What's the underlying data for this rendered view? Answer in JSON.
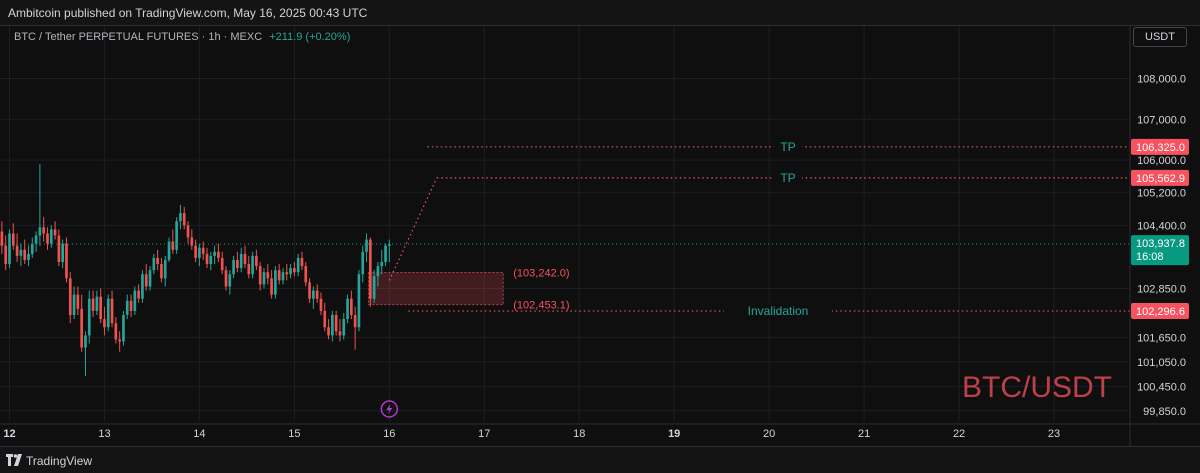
{
  "header": {
    "published": "Ambitcoin published on TradingView.com, May 16, 2025 00:43 UTC"
  },
  "legend": {
    "symbol": "BTC / Tether PERPETUAL FUTURES · 1h · MEXC",
    "change": "+211.9 (+0.20%)"
  },
  "unit_button": "USDT",
  "watermark": "BTC/USDT",
  "footer": {
    "brand": "TradingView",
    "icon": "tradingview-logo-icon"
  },
  "colors": {
    "up": "#26a69a",
    "down": "#ef5350",
    "tp_label": "#26a69a",
    "level_badge": "#f7525f",
    "current_badge": "#089981",
    "zone": "#f7525f",
    "watermark": "#f7525f"
  },
  "chart_data": {
    "type": "candlestick",
    "y_axis": {
      "ylim": [
        99600,
        108700
      ],
      "ticks": [
        {
          "value": 108000,
          "label": "108,000.0"
        },
        {
          "value": 107000,
          "label": "107,000.0"
        },
        {
          "value": 106000,
          "label": "106,000.0"
        },
        {
          "value": 105200,
          "label": "105,200.0"
        },
        {
          "value": 104400,
          "label": "104,400.0"
        },
        {
          "value": 102850,
          "label": "102,850.0"
        },
        {
          "value": 101650,
          "label": "101,650.0"
        },
        {
          "value": 101050,
          "label": "101,050.0"
        },
        {
          "value": 100450,
          "label": "100,450.0"
        },
        {
          "value": 99850,
          "label": "99,850.0"
        }
      ]
    },
    "x_axis": {
      "xlim": [
        11.9,
        23.8
      ],
      "ticks": [
        {
          "value": 12,
          "label": "12",
          "bold": true
        },
        {
          "value": 13,
          "label": "13"
        },
        {
          "value": 14,
          "label": "14"
        },
        {
          "value": 15,
          "label": "15"
        },
        {
          "value": 16,
          "label": "16"
        },
        {
          "value": 17,
          "label": "17"
        },
        {
          "value": 18,
          "label": "18"
        },
        {
          "value": 19,
          "label": "19",
          "bold": true
        },
        {
          "value": 20,
          "label": "20"
        },
        {
          "value": 21,
          "label": "21"
        },
        {
          "value": 22,
          "label": "22"
        },
        {
          "value": 23,
          "label": "23"
        }
      ]
    },
    "current_price": {
      "value": 103937.8,
      "label": "103,937.8",
      "countdown": "16:08"
    },
    "levels": [
      {
        "name": "TP",
        "value": 106325.0,
        "label": "106,325.0",
        "x_start": 16.4
      },
      {
        "name": "TP",
        "value": 105562.9,
        "label": "105,562.9",
        "x_start": 16.5
      },
      {
        "name": "Invalidation",
        "value": 102296.6,
        "label": "102,296.6",
        "x_start": 16.2
      }
    ],
    "zone": {
      "x_from": 15.78,
      "x_to": 17.2,
      "top": 103242.0,
      "bottom": 102453.1,
      "top_label": "(103,242.0)",
      "bottom_label": "(102,453.1)"
    },
    "projection": [
      {
        "x": 16.0,
        "y": 103050
      },
      {
        "x": 16.5,
        "y": 105562.9
      }
    ],
    "candles": [
      {
        "x": 11.92,
        "o": 104250,
        "h": 104500,
        "l": 103700,
        "c": 103900
      },
      {
        "x": 11.96,
        "o": 103900,
        "h": 104150,
        "l": 103300,
        "c": 103450
      },
      {
        "x": 12.0,
        "o": 103450,
        "h": 104300,
        "l": 103350,
        "c": 104200
      },
      {
        "x": 12.04,
        "o": 104200,
        "h": 104450,
        "l": 103800,
        "c": 103900
      },
      {
        "x": 12.08,
        "o": 103900,
        "h": 104200,
        "l": 103500,
        "c": 103650
      },
      {
        "x": 12.12,
        "o": 103650,
        "h": 103950,
        "l": 103400,
        "c": 103800
      },
      {
        "x": 12.16,
        "o": 103800,
        "h": 104050,
        "l": 103450,
        "c": 103550
      },
      {
        "x": 12.2,
        "o": 103550,
        "h": 103900,
        "l": 103400,
        "c": 103700
      },
      {
        "x": 12.24,
        "o": 103700,
        "h": 104100,
        "l": 103600,
        "c": 103950
      },
      {
        "x": 12.28,
        "o": 103950,
        "h": 104250,
        "l": 103750,
        "c": 104150
      },
      {
        "x": 12.32,
        "o": 104150,
        "h": 105900,
        "l": 103900,
        "c": 104350
      },
      {
        "x": 12.36,
        "o": 104350,
        "h": 104600,
        "l": 104000,
        "c": 104200
      },
      {
        "x": 12.4,
        "o": 104200,
        "h": 104350,
        "l": 103800,
        "c": 103950
      },
      {
        "x": 12.44,
        "o": 103950,
        "h": 104400,
        "l": 103850,
        "c": 104300
      },
      {
        "x": 12.48,
        "o": 104300,
        "h": 104500,
        "l": 104050,
        "c": 104150
      },
      {
        "x": 12.52,
        "o": 104150,
        "h": 104300,
        "l": 103400,
        "c": 103500
      },
      {
        "x": 12.56,
        "o": 103500,
        "h": 104050,
        "l": 103350,
        "c": 103950
      },
      {
        "x": 12.6,
        "o": 103950,
        "h": 104100,
        "l": 103000,
        "c": 103100
      },
      {
        "x": 12.64,
        "o": 103100,
        "h": 103250,
        "l": 102000,
        "c": 102200
      },
      {
        "x": 12.68,
        "o": 102200,
        "h": 102900,
        "l": 102100,
        "c": 102700
      },
      {
        "x": 12.72,
        "o": 102700,
        "h": 102900,
        "l": 102200,
        "c": 102350
      },
      {
        "x": 12.76,
        "o": 102350,
        "h": 102700,
        "l": 101300,
        "c": 101400
      },
      {
        "x": 12.8,
        "o": 101400,
        "h": 101800,
        "l": 100700,
        "c": 101700
      },
      {
        "x": 12.84,
        "o": 101700,
        "h": 102800,
        "l": 101500,
        "c": 102600
      },
      {
        "x": 12.88,
        "o": 102600,
        "h": 102800,
        "l": 102150,
        "c": 102300
      },
      {
        "x": 12.92,
        "o": 102300,
        "h": 102800,
        "l": 102200,
        "c": 102650
      },
      {
        "x": 12.96,
        "o": 102650,
        "h": 102850,
        "l": 102000,
        "c": 102100
      },
      {
        "x": 13.0,
        "o": 102100,
        "h": 102400,
        "l": 101700,
        "c": 101900
      },
      {
        "x": 13.04,
        "o": 101900,
        "h": 102700,
        "l": 101800,
        "c": 102600
      },
      {
        "x": 13.08,
        "o": 102600,
        "h": 102800,
        "l": 101900,
        "c": 102000
      },
      {
        "x": 13.12,
        "o": 102000,
        "h": 102150,
        "l": 101500,
        "c": 101600
      },
      {
        "x": 13.16,
        "o": 101600,
        "h": 101800,
        "l": 101300,
        "c": 101550
      },
      {
        "x": 13.2,
        "o": 101550,
        "h": 102300,
        "l": 101450,
        "c": 102200
      },
      {
        "x": 13.24,
        "o": 102200,
        "h": 102700,
        "l": 102100,
        "c": 102550
      },
      {
        "x": 13.28,
        "o": 102550,
        "h": 102700,
        "l": 102150,
        "c": 102300
      },
      {
        "x": 13.32,
        "o": 102300,
        "h": 102900,
        "l": 102200,
        "c": 102800
      },
      {
        "x": 13.36,
        "o": 102800,
        "h": 102950,
        "l": 102500,
        "c": 102600
      },
      {
        "x": 13.4,
        "o": 102600,
        "h": 103300,
        "l": 102500,
        "c": 103200
      },
      {
        "x": 13.44,
        "o": 103200,
        "h": 103450,
        "l": 102800,
        "c": 102900
      },
      {
        "x": 13.48,
        "o": 102900,
        "h": 103400,
        "l": 102800,
        "c": 103300
      },
      {
        "x": 13.52,
        "o": 103300,
        "h": 103700,
        "l": 103200,
        "c": 103600
      },
      {
        "x": 13.56,
        "o": 103600,
        "h": 103800,
        "l": 103300,
        "c": 103450
      },
      {
        "x": 13.6,
        "o": 103450,
        "h": 103600,
        "l": 103000,
        "c": 103100
      },
      {
        "x": 13.64,
        "o": 103100,
        "h": 103650,
        "l": 102900,
        "c": 103550
      },
      {
        "x": 13.68,
        "o": 103550,
        "h": 104100,
        "l": 103500,
        "c": 104000
      },
      {
        "x": 13.72,
        "o": 104000,
        "h": 104300,
        "l": 103700,
        "c": 103800
      },
      {
        "x": 13.76,
        "o": 103800,
        "h": 104600,
        "l": 103700,
        "c": 104500
      },
      {
        "x": 13.8,
        "o": 104500,
        "h": 104900,
        "l": 104300,
        "c": 104700
      },
      {
        "x": 13.84,
        "o": 104700,
        "h": 104850,
        "l": 104300,
        "c": 104400
      },
      {
        "x": 13.88,
        "o": 104400,
        "h": 104500,
        "l": 103950,
        "c": 104100
      },
      {
        "x": 13.92,
        "o": 104100,
        "h": 104300,
        "l": 103800,
        "c": 103900
      },
      {
        "x": 13.96,
        "o": 103900,
        "h": 104050,
        "l": 103500,
        "c": 103600
      },
      {
        "x": 14.0,
        "o": 103600,
        "h": 103950,
        "l": 103400,
        "c": 103850
      },
      {
        "x": 14.04,
        "o": 103850,
        "h": 104000,
        "l": 103550,
        "c": 103700
      },
      {
        "x": 14.08,
        "o": 103700,
        "h": 103850,
        "l": 103350,
        "c": 103450
      },
      {
        "x": 14.12,
        "o": 103450,
        "h": 103750,
        "l": 103300,
        "c": 103650
      },
      {
        "x": 14.16,
        "o": 103650,
        "h": 103900,
        "l": 103450,
        "c": 103750
      },
      {
        "x": 14.2,
        "o": 103750,
        "h": 103950,
        "l": 103500,
        "c": 103600
      },
      {
        "x": 14.24,
        "o": 103600,
        "h": 103750,
        "l": 103200,
        "c": 103300
      },
      {
        "x": 14.28,
        "o": 103300,
        "h": 103400,
        "l": 102800,
        "c": 102900
      },
      {
        "x": 14.32,
        "o": 102900,
        "h": 103300,
        "l": 102700,
        "c": 103200
      },
      {
        "x": 14.36,
        "o": 103200,
        "h": 103650,
        "l": 103100,
        "c": 103550
      },
      {
        "x": 14.4,
        "o": 103550,
        "h": 103750,
        "l": 103250,
        "c": 103350
      },
      {
        "x": 14.44,
        "o": 103350,
        "h": 103850,
        "l": 103250,
        "c": 103700
      },
      {
        "x": 14.48,
        "o": 103700,
        "h": 103900,
        "l": 103350,
        "c": 103450
      },
      {
        "x": 14.52,
        "o": 103450,
        "h": 103650,
        "l": 103100,
        "c": 103200
      },
      {
        "x": 14.56,
        "o": 103200,
        "h": 103750,
        "l": 103100,
        "c": 103650
      },
      {
        "x": 14.6,
        "o": 103650,
        "h": 103800,
        "l": 103300,
        "c": 103400
      },
      {
        "x": 14.64,
        "o": 103400,
        "h": 103500,
        "l": 102800,
        "c": 102950
      },
      {
        "x": 14.68,
        "o": 102950,
        "h": 103350,
        "l": 102850,
        "c": 103250
      },
      {
        "x": 14.72,
        "o": 103250,
        "h": 103450,
        "l": 102950,
        "c": 103100
      },
      {
        "x": 14.76,
        "o": 103100,
        "h": 103300,
        "l": 102600,
        "c": 102700
      },
      {
        "x": 14.8,
        "o": 102700,
        "h": 103400,
        "l": 102600,
        "c": 103300
      },
      {
        "x": 14.84,
        "o": 103300,
        "h": 103450,
        "l": 102950,
        "c": 103050
      },
      {
        "x": 14.88,
        "o": 103050,
        "h": 103350,
        "l": 102950,
        "c": 103250
      },
      {
        "x": 14.92,
        "o": 103250,
        "h": 103450,
        "l": 103050,
        "c": 103200
      },
      {
        "x": 14.96,
        "o": 103200,
        "h": 103450,
        "l": 103100,
        "c": 103350
      },
      {
        "x": 15.0,
        "o": 103350,
        "h": 103500,
        "l": 103150,
        "c": 103250
      },
      {
        "x": 15.04,
        "o": 103250,
        "h": 103700,
        "l": 103150,
        "c": 103600
      },
      {
        "x": 15.08,
        "o": 103600,
        "h": 103750,
        "l": 103300,
        "c": 103400
      },
      {
        "x": 15.12,
        "o": 103400,
        "h": 103500,
        "l": 102900,
        "c": 103000
      },
      {
        "x": 15.16,
        "o": 103000,
        "h": 103100,
        "l": 102500,
        "c": 102600
      },
      {
        "x": 15.2,
        "o": 102600,
        "h": 102900,
        "l": 102350,
        "c": 102800
      },
      {
        "x": 15.24,
        "o": 102800,
        "h": 102950,
        "l": 102500,
        "c": 102600
      },
      {
        "x": 15.28,
        "o": 102600,
        "h": 102750,
        "l": 102200,
        "c": 102300
      },
      {
        "x": 15.32,
        "o": 102300,
        "h": 102500,
        "l": 101800,
        "c": 101900
      },
      {
        "x": 15.36,
        "o": 101900,
        "h": 102100,
        "l": 101600,
        "c": 101700
      },
      {
        "x": 15.4,
        "o": 101700,
        "h": 102300,
        "l": 101550,
        "c": 102200
      },
      {
        "x": 15.44,
        "o": 102200,
        "h": 102300,
        "l": 101700,
        "c": 101800
      },
      {
        "x": 15.48,
        "o": 101800,
        "h": 102100,
        "l": 101550,
        "c": 101700
      },
      {
        "x": 15.52,
        "o": 101700,
        "h": 102250,
        "l": 101600,
        "c": 102100
      },
      {
        "x": 15.56,
        "o": 102100,
        "h": 102700,
        "l": 102000,
        "c": 102600
      },
      {
        "x": 15.6,
        "o": 102600,
        "h": 102800,
        "l": 102100,
        "c": 102200
      },
      {
        "x": 15.64,
        "o": 102200,
        "h": 102400,
        "l": 101350,
        "c": 101900
      },
      {
        "x": 15.68,
        "o": 101900,
        "h": 103300,
        "l": 101800,
        "c": 103200
      },
      {
        "x": 15.72,
        "o": 103200,
        "h": 103900,
        "l": 103000,
        "c": 103750
      },
      {
        "x": 15.76,
        "o": 103750,
        "h": 104200,
        "l": 103500,
        "c": 104050
      },
      {
        "x": 15.8,
        "o": 104050,
        "h": 104100,
        "l": 102400,
        "c": 102600
      },
      {
        "x": 15.84,
        "o": 102600,
        "h": 103300,
        "l": 102500,
        "c": 103150
      },
      {
        "x": 15.88,
        "o": 103150,
        "h": 103500,
        "l": 102900,
        "c": 103400
      },
      {
        "x": 15.92,
        "o": 103400,
        "h": 103800,
        "l": 103200,
        "c": 103500
      },
      {
        "x": 15.96,
        "o": 103500,
        "h": 103950,
        "l": 103400,
        "c": 103900
      },
      {
        "x": 16.0,
        "o": 103900,
        "h": 104050,
        "l": 103500,
        "c": 103937.8
      }
    ]
  }
}
